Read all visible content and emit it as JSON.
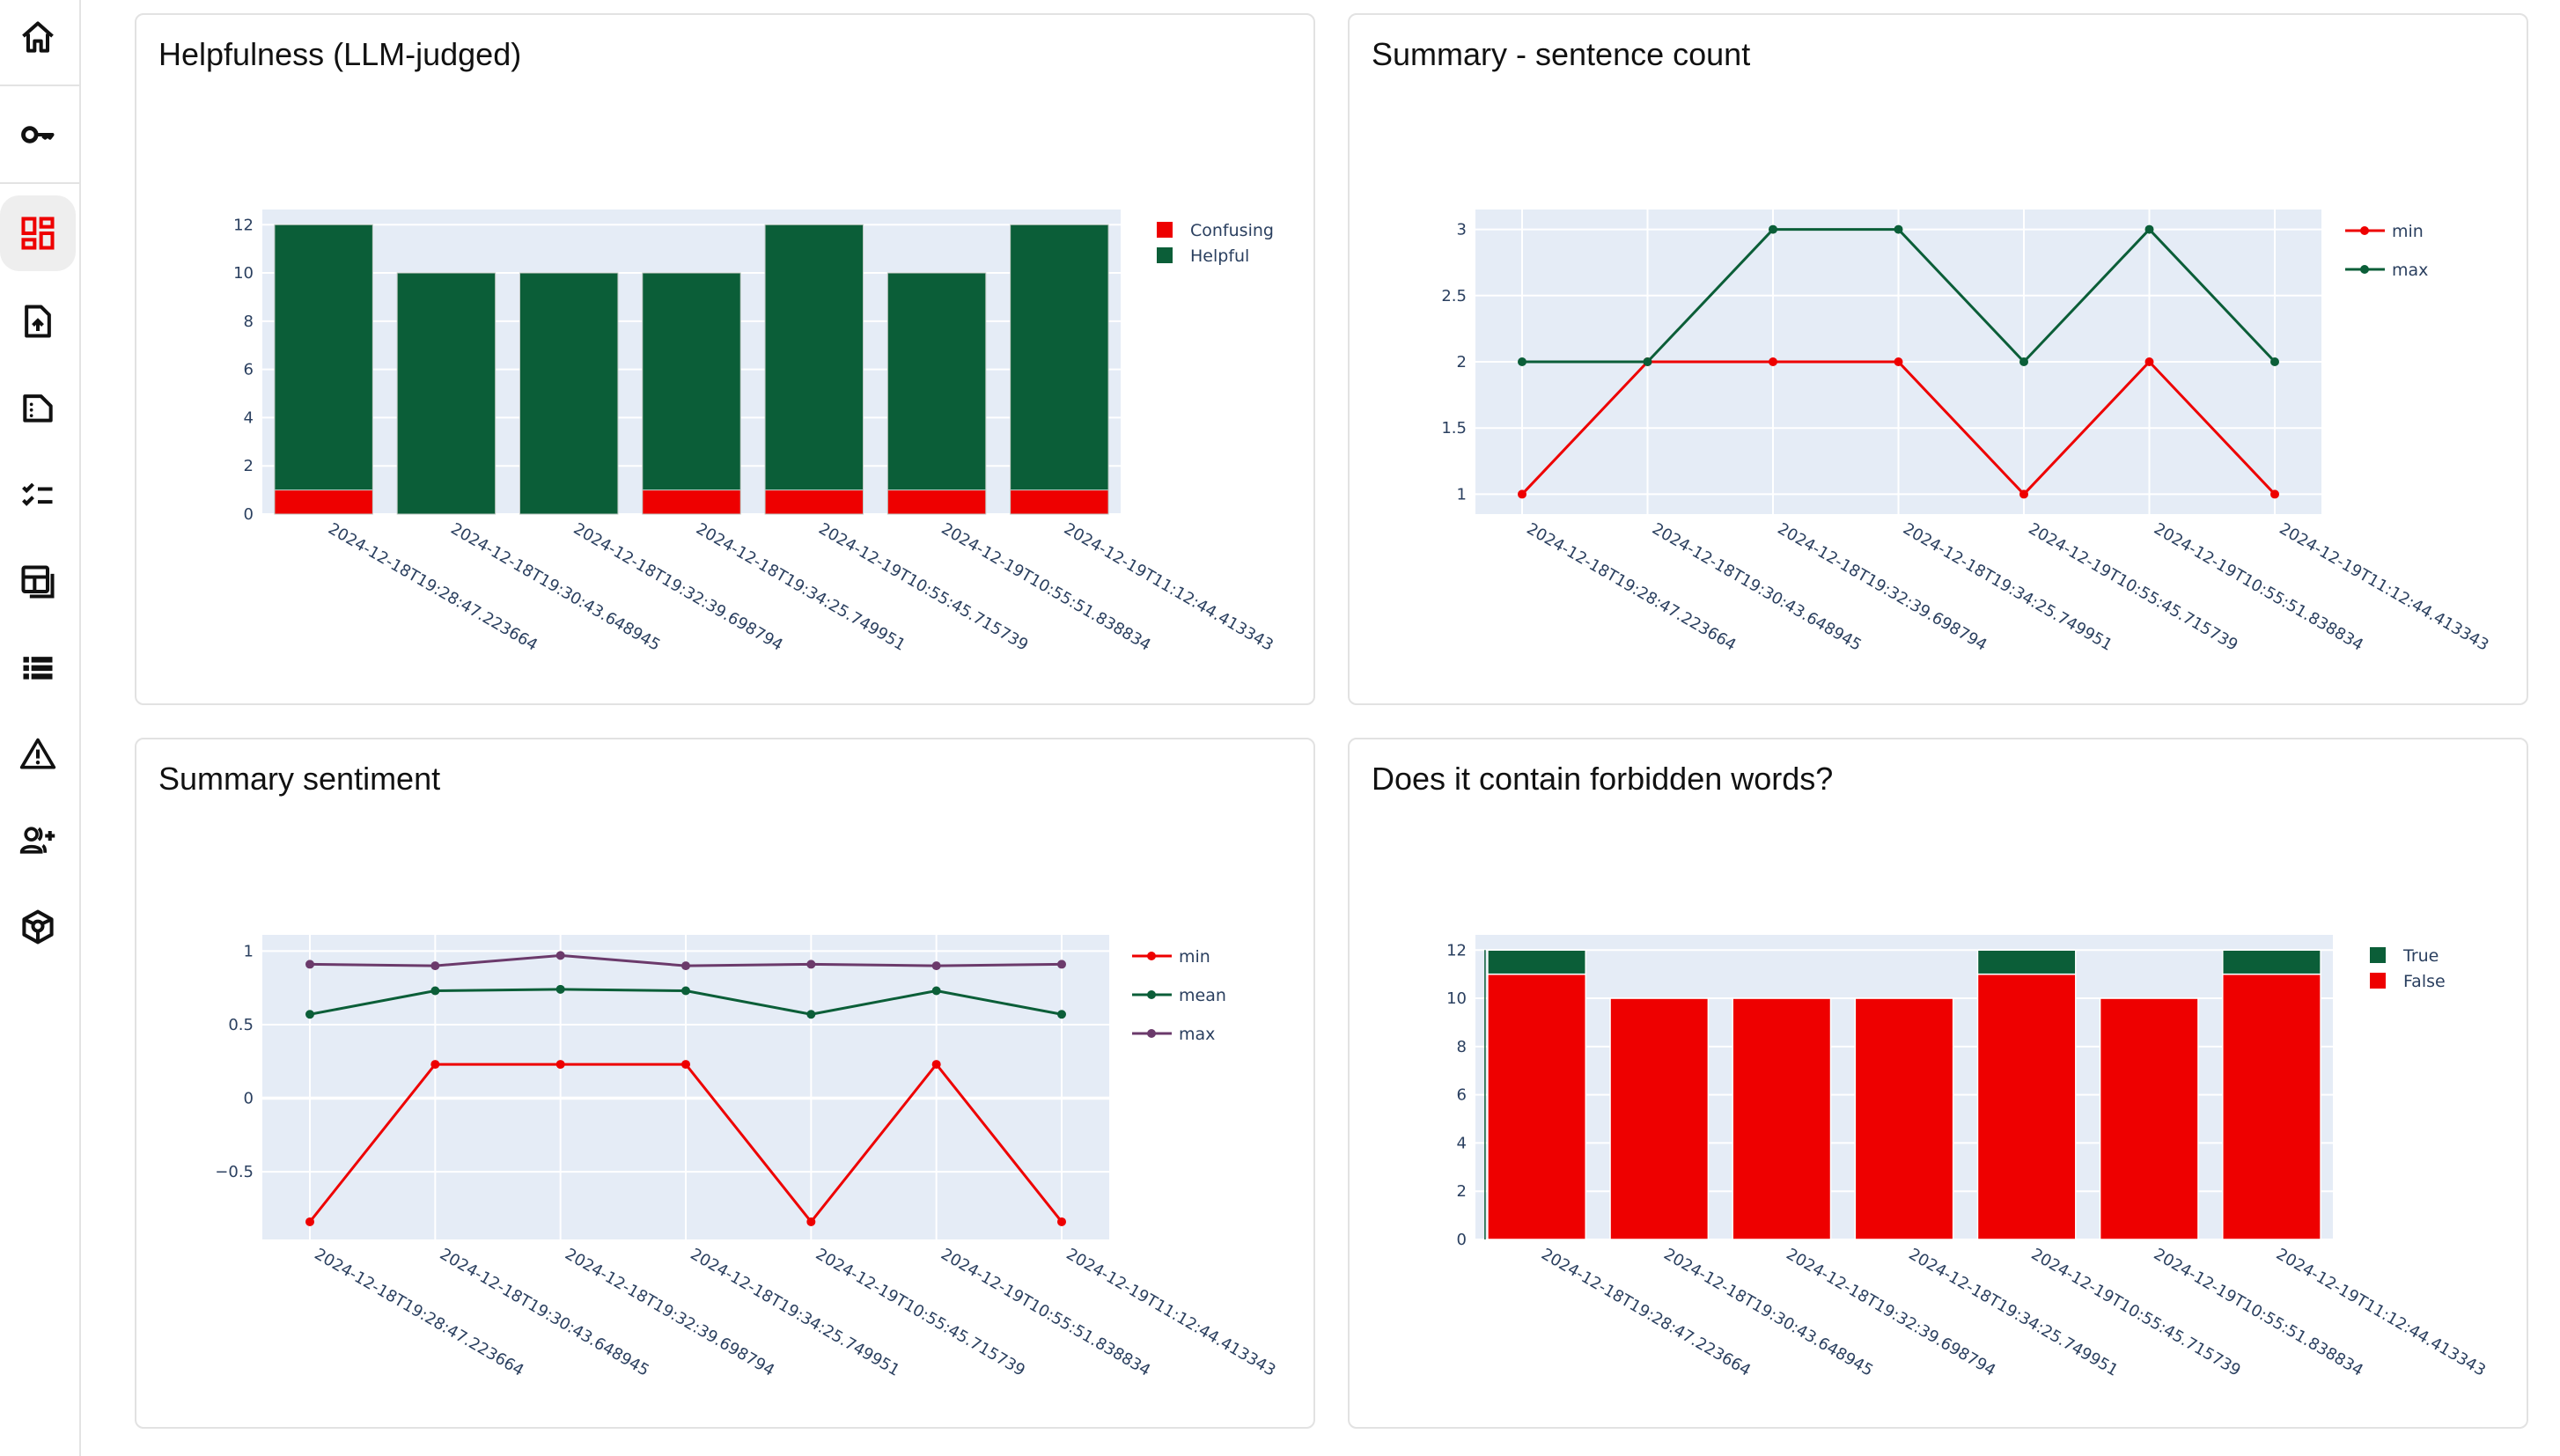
{
  "sidebar": {
    "items": [
      {
        "id": "home",
        "icon": "home-icon",
        "active": false
      },
      {
        "id": "api-keys",
        "icon": "key-icon",
        "active": false
      },
      {
        "id": "dashboard",
        "icon": "dashboard-icon",
        "active": true
      },
      {
        "id": "upload",
        "icon": "file-upload-icon",
        "active": false
      },
      {
        "id": "documents",
        "icon": "file-dots-icon",
        "active": false
      },
      {
        "id": "checklist",
        "icon": "checklist-icon",
        "active": false
      },
      {
        "id": "layouts",
        "icon": "layout-stack-icon",
        "active": false
      },
      {
        "id": "list",
        "icon": "list-icon",
        "active": false
      },
      {
        "id": "alerts",
        "icon": "warning-icon",
        "active": false
      },
      {
        "id": "add-user",
        "icon": "user-add-icon",
        "active": false
      },
      {
        "id": "models",
        "icon": "cube-icon",
        "active": false
      }
    ]
  },
  "colors": {
    "red": "#ee0000",
    "green": "#0b5e38",
    "purple": "#6b3a6b",
    "plot_bg": "#e5ecf6",
    "grid": "#ffffff",
    "tick_text": "#2a3f5f",
    "active_icon": "#ee0000"
  },
  "chart_data": [
    {
      "id": "helpfulness",
      "type": "bar",
      "stacked": true,
      "title": "Helpfulness (LLM-judged)",
      "categories": [
        "2024-12-18T19:28:47.223664",
        "2024-12-18T19:30:43.648945",
        "2024-12-18T19:32:39.698794",
        "2024-12-18T19:34:25.749951",
        "2024-12-19T10:55:45.715739",
        "2024-12-19T10:55:51.838834",
        "2024-12-19T11:12:44.413343"
      ],
      "series": [
        {
          "name": "Confusing",
          "color": "#ee0000",
          "values": [
            1,
            0,
            0,
            1,
            1,
            1,
            1
          ]
        },
        {
          "name": "Helpful",
          "color": "#0b5e38",
          "values": [
            11,
            10,
            10,
            9,
            11,
            9,
            11
          ]
        }
      ],
      "ylim": [
        0,
        12.63
      ],
      "yticks": [
        0,
        2,
        4,
        6,
        8,
        10,
        12
      ],
      "ytick_labels": [
        "0",
        "2",
        "4",
        "6",
        "8",
        "10",
        "12"
      ],
      "legend": [
        "Confusing",
        "Helpful"
      ],
      "legend_position": "top-right",
      "xlabel": "",
      "ylabel": "",
      "grid": true
    },
    {
      "id": "sentence-count",
      "type": "line",
      "title": "Summary - sentence count",
      "categories": [
        "2024-12-18T19:28:47.223664",
        "2024-12-18T19:30:43.648945",
        "2024-12-18T19:32:39.698794",
        "2024-12-18T19:34:25.749951",
        "2024-12-19T10:55:45.715739",
        "2024-12-19T10:55:51.838834",
        "2024-12-19T11:12:44.413343"
      ],
      "series": [
        {
          "name": "min",
          "color": "#ee0000",
          "values": [
            1,
            2,
            2,
            2,
            1,
            2,
            1
          ]
        },
        {
          "name": "max",
          "color": "#0b5e38",
          "values": [
            2,
            2,
            3,
            3,
            2,
            3,
            2
          ]
        }
      ],
      "ylim": [
        0.85,
        3.15
      ],
      "yticks": [
        1,
        1.5,
        2,
        2.5,
        3
      ],
      "ytick_labels": [
        "1",
        "1.5",
        "2",
        "2.5",
        "3"
      ],
      "legend": [
        "min",
        "max"
      ],
      "legend_position": "top-right",
      "xlabel": "",
      "ylabel": "",
      "grid": true
    },
    {
      "id": "sentiment",
      "type": "line",
      "title": "Summary sentiment",
      "categories": [
        "2024-12-18T19:28:47.223664",
        "2024-12-18T19:30:43.648945",
        "2024-12-18T19:32:39.698794",
        "2024-12-18T19:34:25.749951",
        "2024-12-19T10:55:45.715739",
        "2024-12-19T10:55:51.838834",
        "2024-12-19T11:12:44.413343"
      ],
      "series": [
        {
          "name": "min",
          "color": "#ee0000",
          "values": [
            -0.84,
            0.23,
            0.23,
            0.23,
            -0.84,
            0.23,
            -0.84
          ]
        },
        {
          "name": "mean",
          "color": "#0b5e38",
          "values": [
            0.57,
            0.73,
            0.74,
            0.73,
            0.57,
            0.73,
            0.57
          ]
        },
        {
          "name": "max",
          "color": "#6b3a6b",
          "values": [
            0.91,
            0.9,
            0.97,
            0.9,
            0.91,
            0.9,
            0.91
          ]
        }
      ],
      "ylim": [
        -0.96,
        1.11
      ],
      "yticks": [
        -0.5,
        0,
        0.5,
        1
      ],
      "ytick_labels": [
        "−0.5",
        "0",
        "0.5",
        "1"
      ],
      "legend": [
        "min",
        "mean",
        "max"
      ],
      "legend_position": "top-right",
      "xlabel": "",
      "ylabel": "",
      "grid": true
    },
    {
      "id": "forbidden-words",
      "type": "bar",
      "stacked": true,
      "title": "Does it contain forbidden words?",
      "categories": [
        "2024-12-18T19:28:47.223664",
        "2024-12-18T19:30:43.648945",
        "2024-12-18T19:32:39.698794",
        "2024-12-18T19:34:25.749951",
        "2024-12-19T10:55:45.715739",
        "2024-12-19T10:55:51.838834",
        "2024-12-19T11:12:44.413343"
      ],
      "series": [
        {
          "name": "False",
          "color": "#ee0000",
          "values": [
            11,
            10,
            10,
            10,
            11,
            10,
            11
          ]
        },
        {
          "name": "True",
          "color": "#0b5e38",
          "values": [
            1,
            0,
            0,
            0,
            1,
            0,
            1
          ]
        }
      ],
      "ylim": [
        0,
        12.63
      ],
      "yticks": [
        0,
        2,
        4,
        6,
        8,
        10,
        12
      ],
      "ytick_labels": [
        "0",
        "2",
        "4",
        "6",
        "8",
        "10",
        "12"
      ],
      "legend": [
        "True",
        "False"
      ],
      "legend_position": "top-right",
      "xlabel": "",
      "ylabel": "",
      "grid": true
    }
  ]
}
